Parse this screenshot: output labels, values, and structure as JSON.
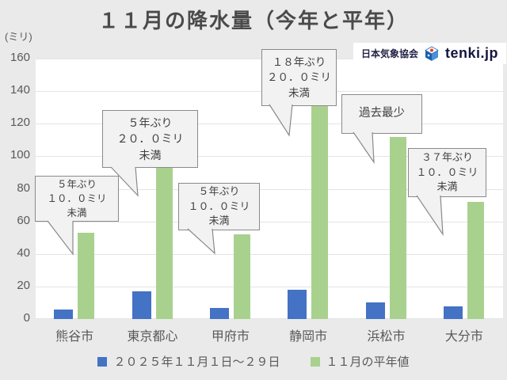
{
  "title": "１１月の降水量（今年と平年）",
  "y_unit_label": "(ミリ)",
  "logo": {
    "association": "日本気象協会",
    "brand": "tenki.jp"
  },
  "colors": {
    "this_year": "#4472c4",
    "normal": "#a9d18e",
    "background": "#eaeaea",
    "plot_background": "#ffffff",
    "callout_fill": "#f2f2f2",
    "callout_border": "#8a8a8a",
    "text": "#595959"
  },
  "chart_data": {
    "type": "bar",
    "categories": [
      "熊谷市",
      "東京都心",
      "甲府市",
      "静岡市",
      "浜松市",
      "大分市"
    ],
    "series": [
      {
        "name": "２０２５年１１月１日～２９日",
        "color": "#4472c4",
        "values": [
          6,
          17,
          7,
          18,
          10,
          8
        ]
      },
      {
        "name": "１１月の平年値",
        "color": "#a9d18e",
        "values": [
          53,
          96,
          52,
          134,
          112,
          72
        ]
      }
    ],
    "title": "１１月の降水量（今年と平年）",
    "xlabel": "",
    "ylabel": "(ミリ)",
    "ylim": [
      0,
      160
    ],
    "ytick_step": 20,
    "grid": true,
    "legend_position": "bottom",
    "annotations": [
      {
        "category": "熊谷市",
        "text": "５年ぶり\n１０．０ミリ\n未満"
      },
      {
        "category": "東京都心",
        "text": "５年ぶり\n２０．０ミリ\n未満"
      },
      {
        "category": "甲府市",
        "text": "５年ぶり\n１０．０ミリ\n未満"
      },
      {
        "category": "静岡市",
        "text": "１８年ぶり\n２０．０ミリ\n未満"
      },
      {
        "category": "浜松市",
        "text": "過去最少"
      },
      {
        "category": "大分市",
        "text": "３７年ぶり\n１０．０ミリ\n未満"
      }
    ]
  }
}
